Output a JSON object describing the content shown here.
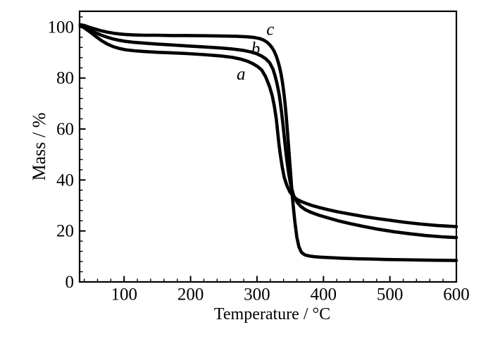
{
  "chart_data": {
    "type": "line",
    "title": "",
    "xlabel": "Temperature / °C",
    "ylabel": "Mass / %",
    "xlim": [
      33,
      600
    ],
    "ylim": [
      0,
      106.2
    ],
    "x_major_ticks": [
      100,
      200,
      300,
      400,
      500,
      600
    ],
    "x_minor_step": 20,
    "y_major_ticks": [
      0,
      20,
      40,
      60,
      80,
      100
    ],
    "y_minor_step": 4,
    "tick_direction": "in",
    "grid": false,
    "legend_position": "none",
    "style": {
      "curve_color": "#000000",
      "text_color": "#000000",
      "background": "#ffffff",
      "curve_width": 4.6,
      "frame_width": 2.2
    },
    "annotations": [
      {
        "label": "a",
        "x": 276,
        "y": 79.4
      },
      {
        "label": "b",
        "x": 298,
        "y": 89.3
      },
      {
        "label": "c",
        "x": 320,
        "y": 96.9
      }
    ],
    "series": [
      {
        "name": "a",
        "final_mass_pct": 21.7,
        "x": [
          34,
          40,
          48,
          57,
          66,
          75,
          84,
          93,
          102,
          115,
          130,
          150,
          170,
          195,
          220,
          245,
          263,
          276,
          286,
          294,
          301,
          307,
          313,
          319,
          323,
          326,
          329,
          331,
          333,
          335,
          338,
          341,
          345,
          349,
          354,
          360,
          367,
          375,
          384,
          395,
          408,
          422,
          440,
          460,
          480,
          500,
          522,
          546,
          572,
          600
        ],
        "y": [
          100.6,
          99.7,
          98.2,
          96.4,
          94.7,
          93.3,
          92.3,
          91.6,
          91.1,
          90.7,
          90.4,
          90.1,
          89.9,
          89.6,
          89.2,
          88.7,
          88.1,
          87.4,
          86.6,
          85.6,
          84.5,
          83.2,
          80.5,
          76.5,
          73.0,
          69.0,
          64.0,
          59.0,
          54.0,
          50.0,
          45.0,
          41.0,
          37.8,
          35.5,
          33.7,
          32.4,
          31.5,
          30.7,
          29.9,
          29.1,
          28.3,
          27.5,
          26.6,
          25.7,
          24.9,
          24.2,
          23.4,
          22.7,
          22.1,
          21.7
        ]
      },
      {
        "name": "b",
        "final_mass_pct": 17.4,
        "x": [
          34,
          40,
          48,
          57,
          66,
          75,
          84,
          93,
          102,
          115,
          130,
          150,
          170,
          195,
          220,
          245,
          263,
          278,
          290,
          299,
          307,
          313,
          319,
          324,
          327,
          330,
          333,
          335,
          337,
          339,
          341,
          343,
          345,
          348,
          351,
          355,
          360,
          366,
          373,
          382,
          393,
          406,
          422,
          440,
          460,
          482,
          506,
          530,
          554,
          578,
          600
        ],
        "y": [
          100.4,
          99.9,
          98.9,
          97.8,
          96.8,
          96.0,
          95.3,
          94.8,
          94.4,
          94.0,
          93.7,
          93.3,
          93.0,
          92.6,
          92.2,
          91.8,
          91.4,
          90.9,
          90.3,
          89.6,
          88.6,
          87.6,
          86.0,
          83.5,
          81.0,
          78.0,
          74.0,
          70.5,
          66.5,
          62.0,
          57.0,
          52.0,
          47.5,
          42.0,
          37.7,
          34.0,
          31.4,
          29.6,
          28.3,
          27.2,
          26.2,
          25.2,
          24.0,
          22.9,
          21.8,
          20.7,
          19.7,
          18.9,
          18.2,
          17.7,
          17.4
        ]
      },
      {
        "name": "c",
        "final_mass_pct": 8.4,
        "x": [
          34,
          40,
          48,
          57,
          66,
          75,
          84,
          93,
          102,
          115,
          130,
          150,
          170,
          195,
          220,
          245,
          268,
          285,
          296,
          304,
          310,
          315,
          319,
          323,
          326,
          329,
          332,
          334,
          336,
          338,
          340,
          342,
          344,
          346,
          348,
          350,
          352,
          354,
          357,
          360,
          363,
          367,
          372,
          378,
          386,
          396,
          410,
          428,
          448,
          470,
          494,
          518,
          544,
          572,
          600
        ],
        "y": [
          100.9,
          100.6,
          99.9,
          99.2,
          98.5,
          98.0,
          97.6,
          97.3,
          97.1,
          96.9,
          96.8,
          96.8,
          96.7,
          96.7,
          96.6,
          96.5,
          96.4,
          96.2,
          95.9,
          95.5,
          94.9,
          94.1,
          93.1,
          91.8,
          90.4,
          88.6,
          86.2,
          84.2,
          81.8,
          78.8,
          75.0,
          70.5,
          65.0,
          58.5,
          51.5,
          44.5,
          37.5,
          31.0,
          23.5,
          17.5,
          13.8,
          11.6,
          10.6,
          10.2,
          9.9,
          9.7,
          9.5,
          9.3,
          9.1,
          9.0,
          8.8,
          8.7,
          8.6,
          8.5,
          8.4
        ]
      }
    ]
  }
}
